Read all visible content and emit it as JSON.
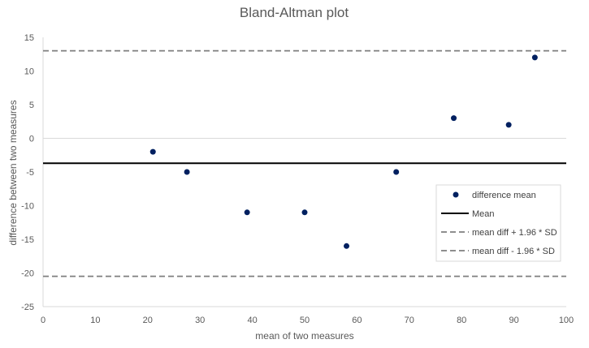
{
  "chart_data": {
    "type": "scatter",
    "title": "Bland-Altman plot",
    "xlabel": "mean of two measures",
    "ylabel": "difference between two measures",
    "xlim": [
      0,
      100
    ],
    "ylim": [
      -25,
      15
    ],
    "xticks": [
      0,
      10,
      20,
      30,
      40,
      50,
      60,
      70,
      80,
      90,
      100
    ],
    "yticks": [
      -25,
      -20,
      -15,
      -10,
      -5,
      0,
      5,
      10,
      15
    ],
    "grid": "horizontal-zero-line",
    "legend_position": "right",
    "series": [
      {
        "name": "difference mean",
        "kind": "scatter",
        "color": "#002060",
        "points": [
          {
            "x": 21,
            "y": -2
          },
          {
            "x": 27.5,
            "y": -5
          },
          {
            "x": 39,
            "y": -11
          },
          {
            "x": 50,
            "y": -11
          },
          {
            "x": 58,
            "y": -16
          },
          {
            "x": 67.5,
            "y": -5
          },
          {
            "x": 78.5,
            "y": 3
          },
          {
            "x": 89,
            "y": 2
          },
          {
            "x": 94,
            "y": 12
          }
        ]
      },
      {
        "name": "Mean",
        "kind": "hline",
        "value": -3.7,
        "color": "#000000",
        "dash": "solid"
      },
      {
        "name": "mean diff + 1.96 * SD",
        "kind": "hline",
        "value": 13,
        "color": "#7f7f7f",
        "dash": "dashed"
      },
      {
        "name": "mean diff - 1.96 * SD",
        "kind": "hline",
        "value": -20.5,
        "color": "#7f7f7f",
        "dash": "dashed"
      }
    ]
  }
}
